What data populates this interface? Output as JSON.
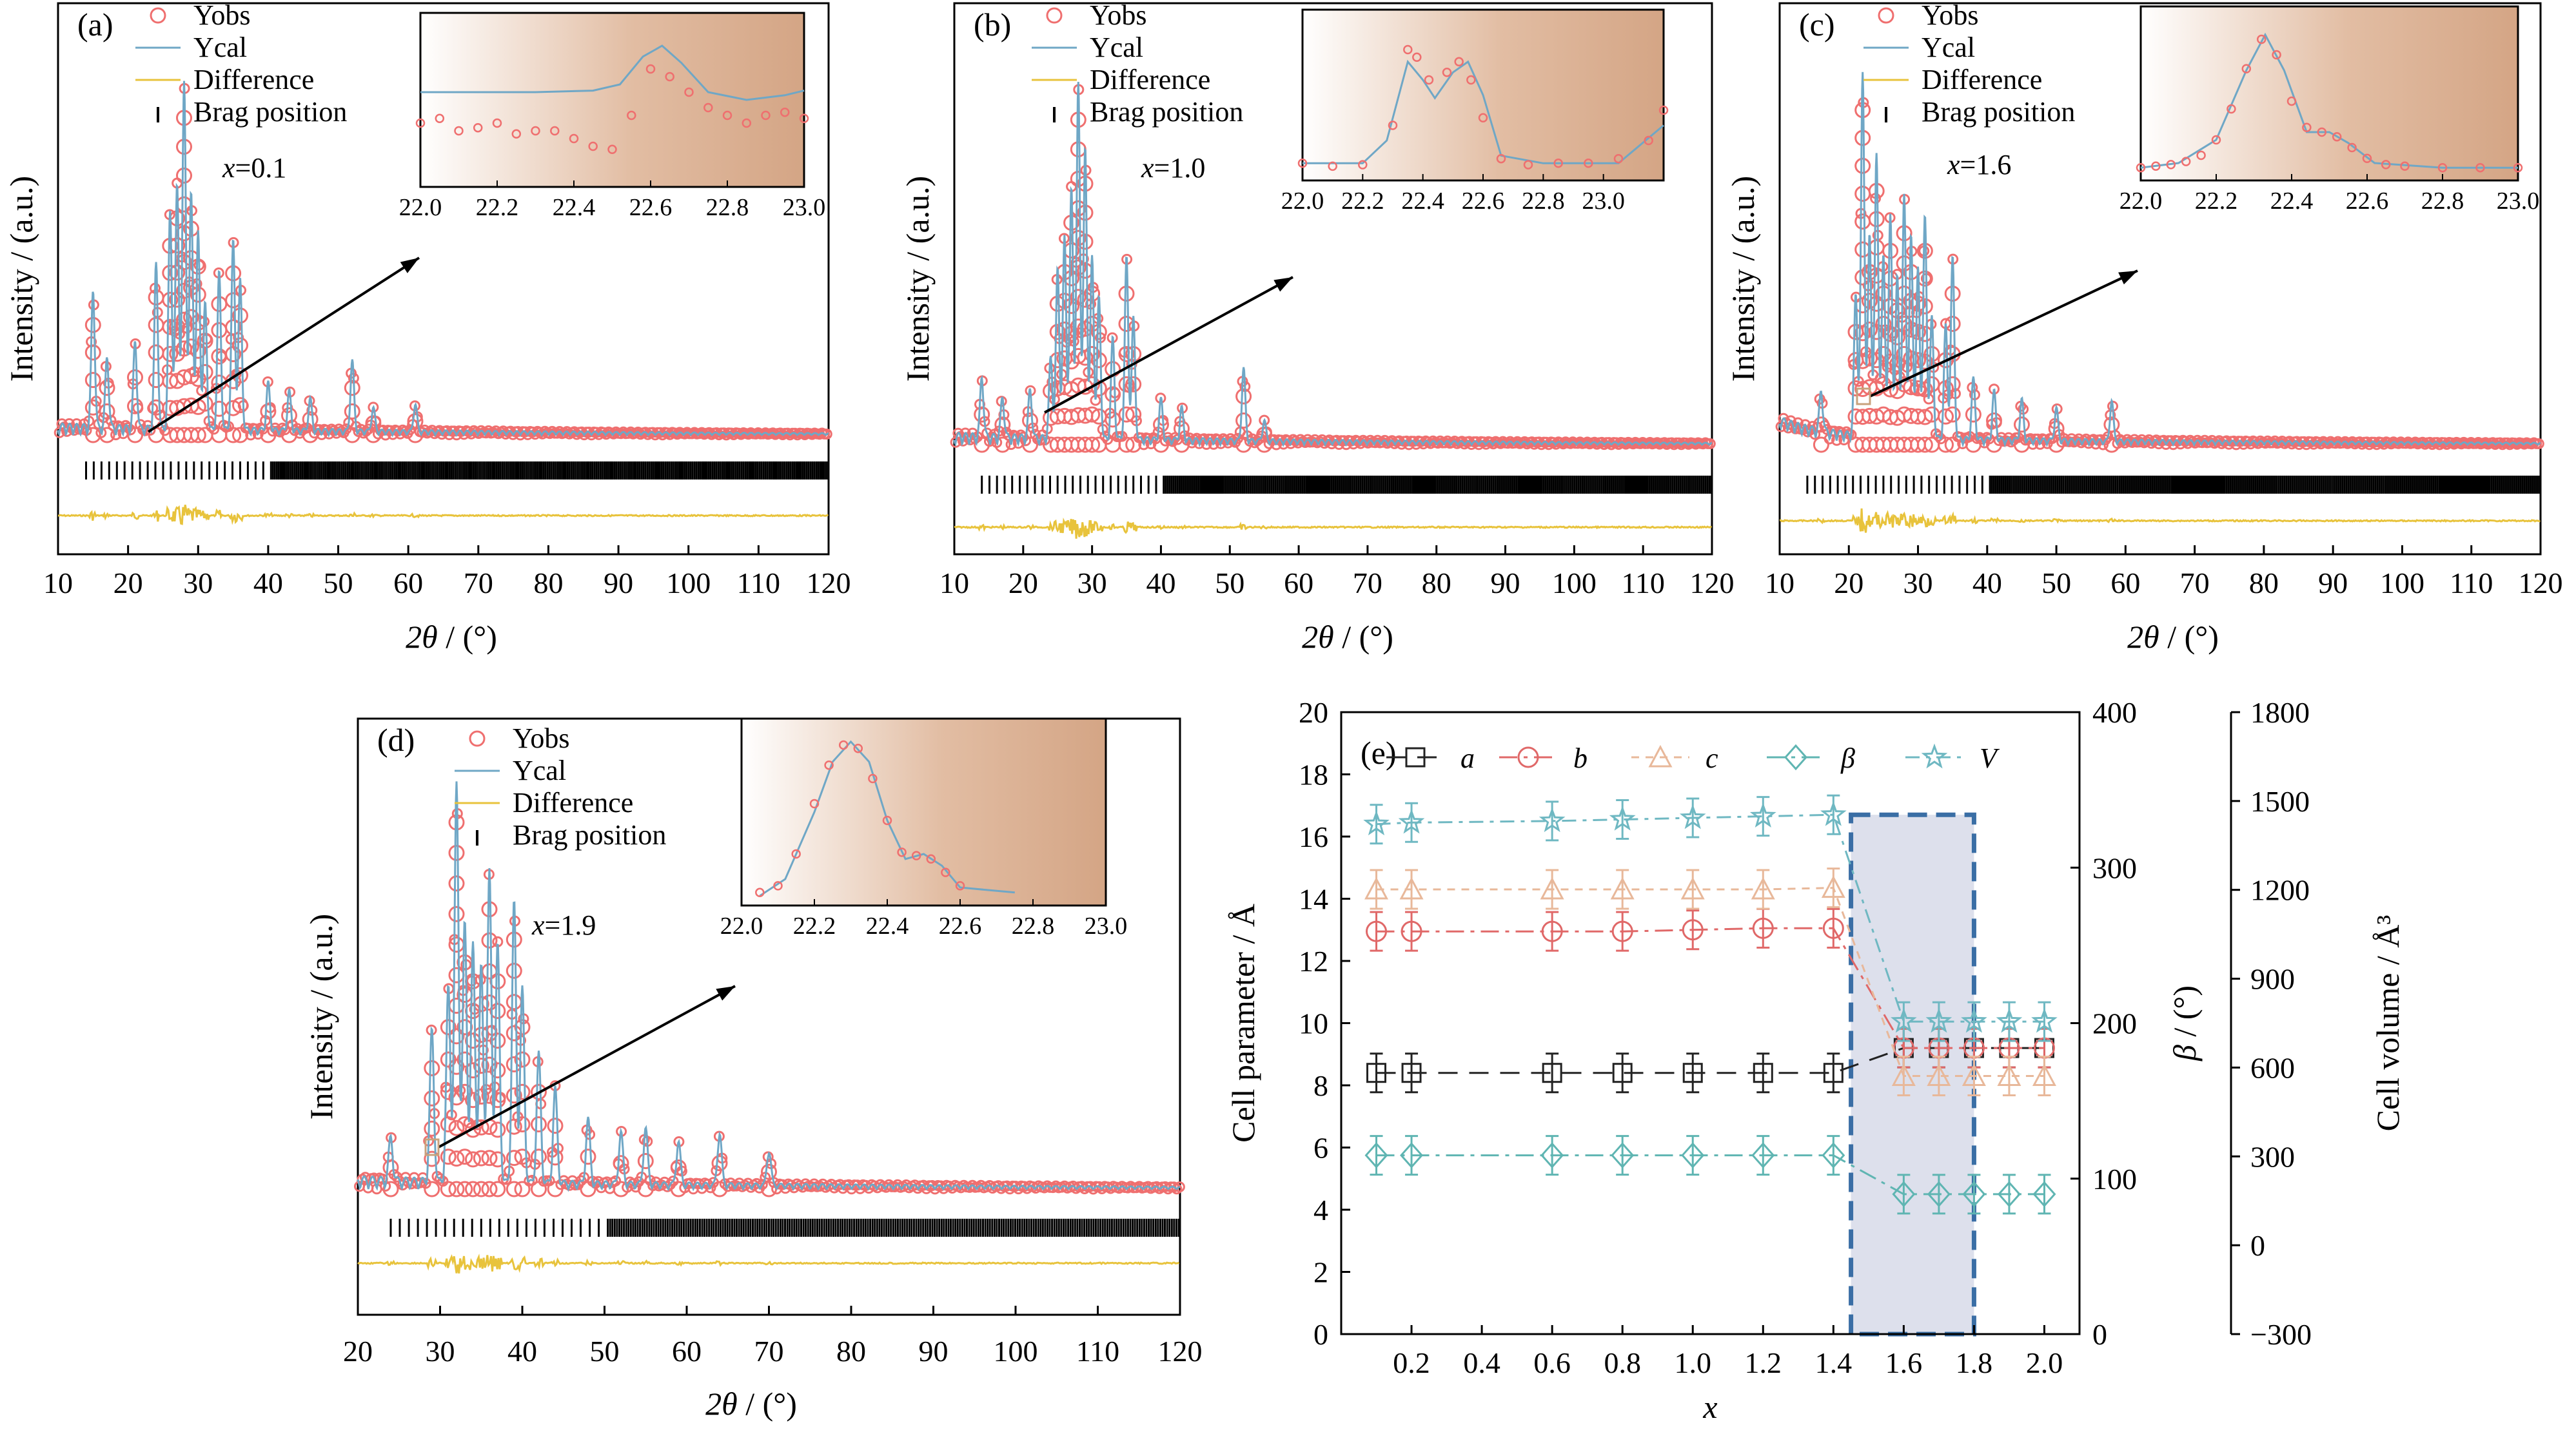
{
  "chart_data": [
    {
      "type": "scatter",
      "panel": "(a)",
      "annotation_var": "x",
      "annotation_value": "=0.1",
      "xlabel_var": "2θ",
      "xlabel_unit": " / (°)",
      "ylabel": "Intensity / (a.u.)",
      "xlim": [
        10,
        120
      ],
      "xticks": [
        "10",
        "20",
        "30",
        "40",
        "50",
        "60",
        "70",
        "80",
        "90",
        "100",
        "110",
        "120"
      ],
      "legend": [
        "Yobs",
        "Ycal",
        "Difference",
        "Brag position"
      ],
      "major_peaks": [
        [
          15,
          0.35
        ],
        [
          17,
          0.18
        ],
        [
          21,
          0.22
        ],
        [
          24,
          0.42
        ],
        [
          26,
          0.55
        ],
        [
          27,
          0.62
        ],
        [
          28,
          0.88
        ],
        [
          29,
          0.6
        ],
        [
          30,
          0.5
        ],
        [
          31,
          0.32
        ],
        [
          33,
          0.4
        ],
        [
          35,
          0.48
        ],
        [
          36,
          0.38
        ],
        [
          40,
          0.12
        ],
        [
          43,
          0.1
        ],
        [
          46,
          0.08
        ],
        [
          52,
          0.18
        ],
        [
          55,
          0.06
        ],
        [
          61,
          0.07
        ]
      ],
      "inset": {
        "xlim": [
          22.0,
          23.0
        ],
        "xticks": [
          "22.0",
          "22.2",
          "22.4",
          "22.6",
          "22.8",
          "23.0"
        ],
        "ycal": [
          [
            22.0,
            0.55
          ],
          [
            22.3,
            0.55
          ],
          [
            22.45,
            0.56
          ],
          [
            22.52,
            0.6
          ],
          [
            22.58,
            0.78
          ],
          [
            22.63,
            0.85
          ],
          [
            22.68,
            0.74
          ],
          [
            22.75,
            0.55
          ],
          [
            22.85,
            0.5
          ],
          [
            22.95,
            0.53
          ],
          [
            23.0,
            0.56
          ]
        ],
        "yobs": [
          [
            22.0,
            0.35
          ],
          [
            22.05,
            0.38
          ],
          [
            22.1,
            0.3
          ],
          [
            22.15,
            0.32
          ],
          [
            22.2,
            0.35
          ],
          [
            22.25,
            0.28
          ],
          [
            22.3,
            0.3
          ],
          [
            22.35,
            0.3
          ],
          [
            22.4,
            0.25
          ],
          [
            22.45,
            0.2
          ],
          [
            22.5,
            0.18
          ],
          [
            22.55,
            0.4
          ],
          [
            22.6,
            0.7
          ],
          [
            22.65,
            0.65
          ],
          [
            22.7,
            0.55
          ],
          [
            22.75,
            0.45
          ],
          [
            22.8,
            0.4
          ],
          [
            22.85,
            0.35
          ],
          [
            22.9,
            0.4
          ],
          [
            22.95,
            0.42
          ],
          [
            23.0,
            0.38
          ]
        ]
      }
    },
    {
      "type": "scatter",
      "panel": "(b)",
      "annotation_var": "x",
      "annotation_value": "=1.0",
      "xlabel_var": "2θ",
      "xlabel_unit": " / (°)",
      "ylabel": "Intensity / (a.u.)",
      "xlim": [
        10,
        120
      ],
      "xticks": [
        "10",
        "20",
        "30",
        "40",
        "50",
        "60",
        "70",
        "80",
        "90",
        "100",
        "110",
        "120"
      ],
      "legend": [
        "Yobs",
        "Ycal",
        "Difference",
        "Brag position"
      ],
      "major_peaks": [
        [
          14,
          0.15
        ],
        [
          17,
          0.1
        ],
        [
          21,
          0.12
        ],
        [
          24,
          0.2
        ],
        [
          25,
          0.42
        ],
        [
          26,
          0.5
        ],
        [
          27,
          0.62
        ],
        [
          28,
          0.88
        ],
        [
          29,
          0.72
        ],
        [
          30,
          0.45
        ],
        [
          31,
          0.35
        ],
        [
          33,
          0.25
        ],
        [
          35,
          0.45
        ],
        [
          36,
          0.3
        ],
        [
          40,
          0.1
        ],
        [
          43,
          0.08
        ],
        [
          52,
          0.18
        ],
        [
          55,
          0.05
        ]
      ],
      "inset": {
        "xlim": [
          22.0,
          23.2
        ],
        "xticks": [
          "22.0",
          "22.2",
          "22.4",
          "22.6",
          "22.8",
          "23.0"
        ],
        "ycal": [
          [
            22.0,
            0.05
          ],
          [
            22.2,
            0.05
          ],
          [
            22.28,
            0.2
          ],
          [
            22.35,
            0.72
          ],
          [
            22.4,
            0.6
          ],
          [
            22.44,
            0.48
          ],
          [
            22.5,
            0.65
          ],
          [
            22.55,
            0.72
          ],
          [
            22.6,
            0.5
          ],
          [
            22.66,
            0.1
          ],
          [
            22.8,
            0.05
          ],
          [
            23.05,
            0.05
          ],
          [
            23.2,
            0.3
          ]
        ],
        "yobs": [
          [
            22.0,
            0.05
          ],
          [
            22.1,
            0.03
          ],
          [
            22.2,
            0.04
          ],
          [
            22.3,
            0.3
          ],
          [
            22.35,
            0.8
          ],
          [
            22.38,
            0.75
          ],
          [
            22.42,
            0.6
          ],
          [
            22.48,
            0.65
          ],
          [
            22.52,
            0.72
          ],
          [
            22.56,
            0.6
          ],
          [
            22.6,
            0.35
          ],
          [
            22.66,
            0.08
          ],
          [
            22.75,
            0.04
          ],
          [
            22.85,
            0.05
          ],
          [
            22.95,
            0.05
          ],
          [
            23.05,
            0.08
          ],
          [
            23.15,
            0.2
          ],
          [
            23.2,
            0.4
          ]
        ]
      }
    },
    {
      "type": "scatter",
      "panel": "(c)",
      "annotation_var": "x",
      "annotation_value": "=1.6",
      "xlabel_var": "2θ",
      "xlabel_unit": " / (°)",
      "ylabel": "Intensity / (a.u.)",
      "xlim": [
        10,
        120
      ],
      "xticks": [
        "10",
        "20",
        "30",
        "40",
        "50",
        "60",
        "70",
        "80",
        "90",
        "100",
        "110",
        "120"
      ],
      "legend": [
        "Yobs",
        "Ycal",
        "Difference",
        "Brag position"
      ],
      "major_peaks": [
        [
          16,
          0.1
        ],
        [
          21,
          0.35
        ],
        [
          22,
          0.9
        ],
        [
          23,
          0.5
        ],
        [
          24,
          0.7
        ],
        [
          25,
          0.45
        ],
        [
          26,
          0.55
        ],
        [
          27,
          0.4
        ],
        [
          28,
          0.6
        ],
        [
          29,
          0.5
        ],
        [
          30,
          0.42
        ],
        [
          31,
          0.55
        ],
        [
          32,
          0.3
        ],
        [
          34,
          0.28
        ],
        [
          35,
          0.45
        ],
        [
          38,
          0.15
        ],
        [
          41,
          0.12
        ],
        [
          45,
          0.1
        ],
        [
          50,
          0.08
        ],
        [
          58,
          0.1
        ]
      ],
      "inset": {
        "xlim": [
          22.0,
          23.0
        ],
        "xticks": [
          "22.0",
          "22.2",
          "22.4",
          "22.6",
          "22.8",
          "23.0"
        ],
        "ycal": [
          [
            22.0,
            0.02
          ],
          [
            22.1,
            0.05
          ],
          [
            22.2,
            0.2
          ],
          [
            22.28,
            0.65
          ],
          [
            22.33,
            0.88
          ],
          [
            22.38,
            0.65
          ],
          [
            22.44,
            0.25
          ],
          [
            22.5,
            0.25
          ],
          [
            22.55,
            0.18
          ],
          [
            22.62,
            0.05
          ],
          [
            22.8,
            0.02
          ],
          [
            23.0,
            0.02
          ]
        ],
        "yobs": [
          [
            22.0,
            0.02
          ],
          [
            22.04,
            0.03
          ],
          [
            22.08,
            0.04
          ],
          [
            22.12,
            0.06
          ],
          [
            22.16,
            0.1
          ],
          [
            22.2,
            0.2
          ],
          [
            22.24,
            0.4
          ],
          [
            22.28,
            0.66
          ],
          [
            22.32,
            0.85
          ],
          [
            22.36,
            0.75
          ],
          [
            22.4,
            0.45
          ],
          [
            22.44,
            0.28
          ],
          [
            22.48,
            0.25
          ],
          [
            22.52,
            0.22
          ],
          [
            22.56,
            0.15
          ],
          [
            22.6,
            0.08
          ],
          [
            22.65,
            0.04
          ],
          [
            22.7,
            0.03
          ],
          [
            22.8,
            0.02
          ],
          [
            22.9,
            0.02
          ],
          [
            23.0,
            0.02
          ]
        ]
      }
    },
    {
      "type": "scatter",
      "panel": "(d)",
      "annotation_var": "x",
      "annotation_value": "=1.9",
      "xlabel_var": "2θ",
      "xlabel_unit": " / (°)",
      "ylabel": "Intensity / (a.u.)",
      "xlim": [
        20,
        120
      ],
      "xticks": [
        "20",
        "30",
        "40",
        "50",
        "60",
        "70",
        "80",
        "90",
        "100",
        "110",
        "120"
      ],
      "legend": [
        "Yobs",
        "Ycal",
        "Difference",
        "Brag position"
      ],
      "major_peaks": [
        [
          24,
          0.1
        ],
        [
          29,
          0.35
        ],
        [
          31,
          0.45
        ],
        [
          32,
          0.92
        ],
        [
          33,
          0.6
        ],
        [
          34,
          0.55
        ],
        [
          35,
          0.5
        ],
        [
          36,
          0.72
        ],
        [
          37,
          0.55
        ],
        [
          39,
          0.65
        ],
        [
          40,
          0.45
        ],
        [
          42,
          0.3
        ],
        [
          44,
          0.22
        ],
        [
          48,
          0.15
        ],
        [
          52,
          0.12
        ],
        [
          55,
          0.13
        ],
        [
          59,
          0.1
        ],
        [
          64,
          0.12
        ],
        [
          70,
          0.08
        ]
      ],
      "inset": {
        "xlim": [
          22.0,
          23.0
        ],
        "xticks": [
          "22.0",
          "22.2",
          "22.4",
          "22.6",
          "22.8",
          "23.0"
        ],
        "ycal": [
          [
            22.05,
            0.0
          ],
          [
            22.12,
            0.1
          ],
          [
            22.2,
            0.5
          ],
          [
            22.25,
            0.8
          ],
          [
            22.3,
            0.92
          ],
          [
            22.35,
            0.8
          ],
          [
            22.4,
            0.45
          ],
          [
            22.45,
            0.22
          ],
          [
            22.5,
            0.25
          ],
          [
            22.55,
            0.18
          ],
          [
            22.6,
            0.05
          ],
          [
            22.75,
            0.02
          ]
        ],
        "yobs": [
          [
            22.05,
            0.02
          ],
          [
            22.1,
            0.06
          ],
          [
            22.15,
            0.25
          ],
          [
            22.2,
            0.55
          ],
          [
            22.24,
            0.78
          ],
          [
            22.28,
            0.9
          ],
          [
            22.32,
            0.88
          ],
          [
            22.36,
            0.7
          ],
          [
            22.4,
            0.45
          ],
          [
            22.44,
            0.26
          ],
          [
            22.48,
            0.24
          ],
          [
            22.52,
            0.22
          ],
          [
            22.56,
            0.14
          ],
          [
            22.6,
            0.06
          ]
        ]
      }
    },
    {
      "type": "line",
      "panel": "(e)",
      "xlabel": "x",
      "ylabel_left": "Cell parameter / Å",
      "ylabel_right1_var": "β",
      "ylabel_right1_unit": " / (°)",
      "ylabel_right2": "Cell volume / Å³",
      "xlim": [
        0.0,
        2.1
      ],
      "xticks": [
        "0.2",
        "0.4",
        "0.6",
        "0.8",
        "1.0",
        "1.2",
        "1.4",
        "1.6",
        "1.8",
        "2.0"
      ],
      "ylim_left": [
        0,
        20
      ],
      "yticks_left": [
        "0",
        "2",
        "4",
        "6",
        "8",
        "10",
        "12",
        "14",
        "16",
        "18",
        "20"
      ],
      "ylim_beta": [
        0,
        400
      ],
      "yticks_beta": [
        "0",
        "100",
        "200",
        "300",
        "400"
      ],
      "ylim_volume": [
        -300,
        1800
      ],
      "yticks_volume": [
        "−300",
        "0",
        "300",
        "600",
        "900",
        "1200",
        "1500",
        "1800"
      ],
      "highlight_x": [
        1.45,
        1.8
      ],
      "x": [
        0.1,
        0.2,
        0.6,
        0.8,
        1.0,
        1.2,
        1.4,
        1.6,
        1.7,
        1.8,
        1.9,
        2.0
      ],
      "series": [
        {
          "name": "a",
          "color": "#222222",
          "marker": "square",
          "axis": "left",
          "values": [
            8.4,
            8.4,
            8.4,
            8.4,
            8.4,
            8.4,
            8.4,
            9.2,
            9.2,
            9.2,
            9.2,
            9.2
          ]
        },
        {
          "name": "b",
          "color": "#e06868",
          "marker": "circle",
          "axis": "left",
          "values": [
            12.95,
            12.95,
            12.95,
            12.95,
            13.0,
            13.05,
            13.05,
            9.2,
            9.2,
            9.2,
            9.2,
            9.2
          ]
        },
        {
          "name": "c",
          "color": "#e8b89a",
          "marker": "triangle",
          "axis": "left",
          "values": [
            14.3,
            14.3,
            14.3,
            14.3,
            14.3,
            14.3,
            14.35,
            8.3,
            8.3,
            8.3,
            8.3,
            8.3
          ]
        },
        {
          "name": "β",
          "color": "#5fb5b2",
          "marker": "diamond",
          "axis": "left",
          "values": [
            5.75,
            5.75,
            5.75,
            5.75,
            5.75,
            5.75,
            5.75,
            4.5,
            4.5,
            4.5,
            4.5,
            4.5
          ]
        },
        {
          "name": "V",
          "color": "#6fb8c2",
          "marker": "star",
          "axis": "left",
          "values": [
            16.4,
            16.45,
            16.5,
            16.55,
            16.6,
            16.65,
            16.7,
            10.05,
            10.05,
            10.05,
            10.05,
            10.05
          ]
        }
      ]
    }
  ],
  "colors": {
    "yobs": "#ef6f6f",
    "ycal": "#6fa7c6",
    "difference": "#e8c33c",
    "brag": "#000000",
    "inset_bg_left": "#ffffff",
    "inset_bg_mid": "#d9ab8c",
    "highlight_fill": "#dde0ec",
    "highlight_stroke": "#3a6ea5"
  }
}
